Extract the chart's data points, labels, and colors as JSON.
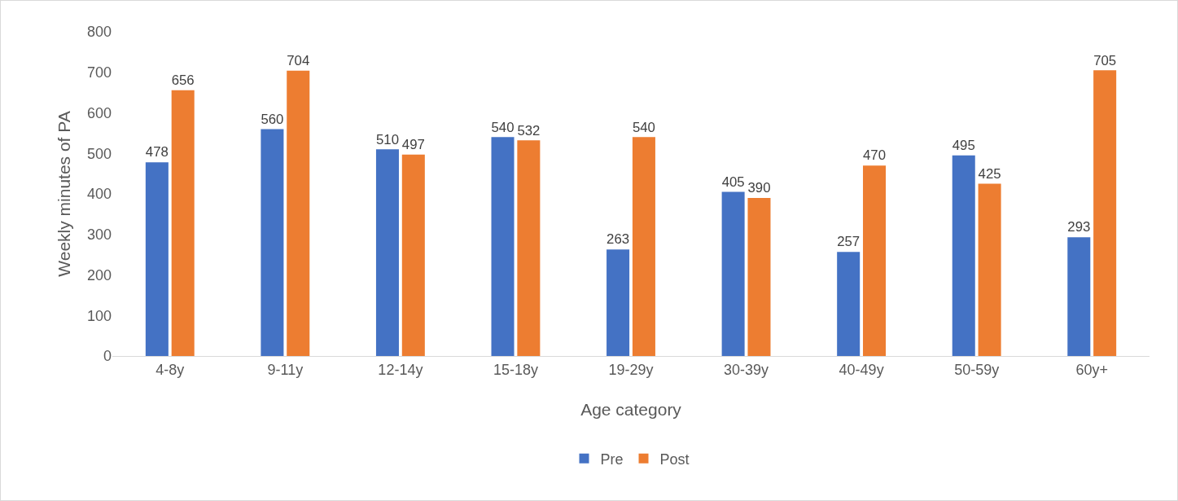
{
  "chart_data": {
    "type": "bar",
    "xlabel": "Age category",
    "ylabel": "Weekly minutes of PA",
    "categories": [
      "4-8y",
      "9-11y",
      "12-14y",
      "15-18y",
      "19-29y",
      "30-39y",
      "40-49y",
      "50-59y",
      "60y+"
    ],
    "series": [
      {
        "name": "Pre",
        "color": "#4472c4",
        "values": [
          478,
          560,
          510,
          540,
          263,
          405,
          257,
          495,
          293
        ]
      },
      {
        "name": "Post",
        "color": "#ed7d31",
        "values": [
          656,
          704,
          497,
          532,
          540,
          390,
          470,
          425,
          705
        ]
      }
    ],
    "ylim": [
      0,
      800
    ],
    "yticks": [
      0,
      100,
      200,
      300,
      400,
      500,
      600,
      700,
      800
    ],
    "grid": false,
    "legend": "bottom",
    "data_labels": true
  }
}
